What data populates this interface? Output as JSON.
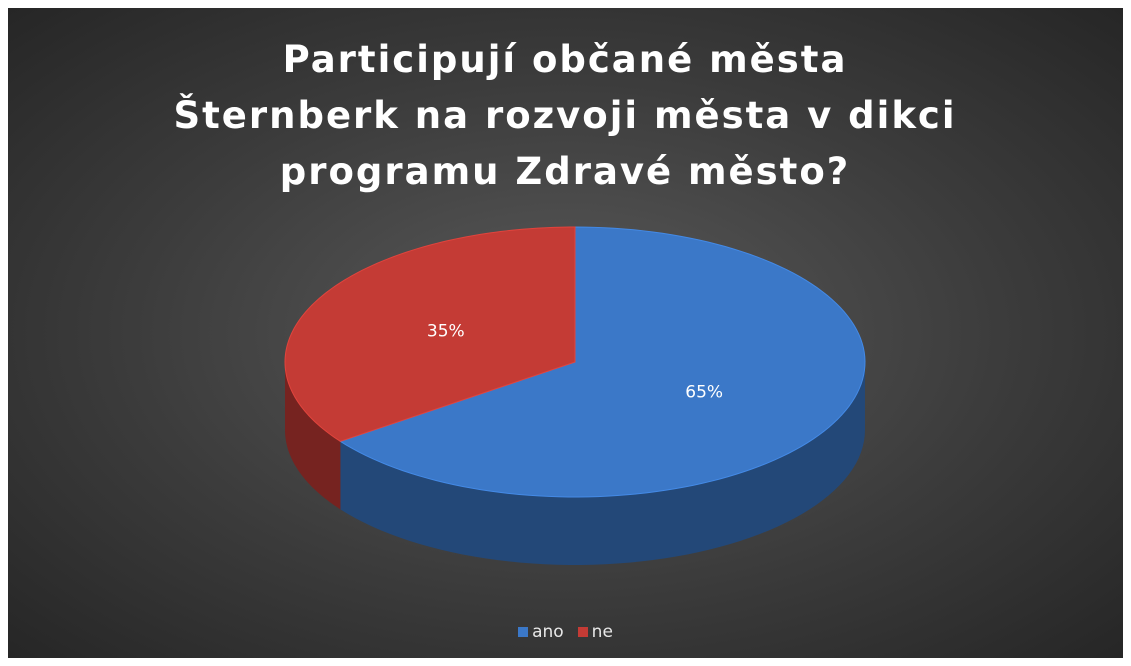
{
  "chart_data": {
    "type": "pie",
    "title": "Participují občané města Šternberk na rozvoji města v dikci programu Zdravé město?",
    "categories": [
      "ano",
      "ne"
    ],
    "values": [
      65,
      35
    ],
    "value_labels": [
      "65%",
      "35%"
    ],
    "colors": [
      "#3b78c8",
      "#c43b35"
    ],
    "legend": "bottom"
  }
}
